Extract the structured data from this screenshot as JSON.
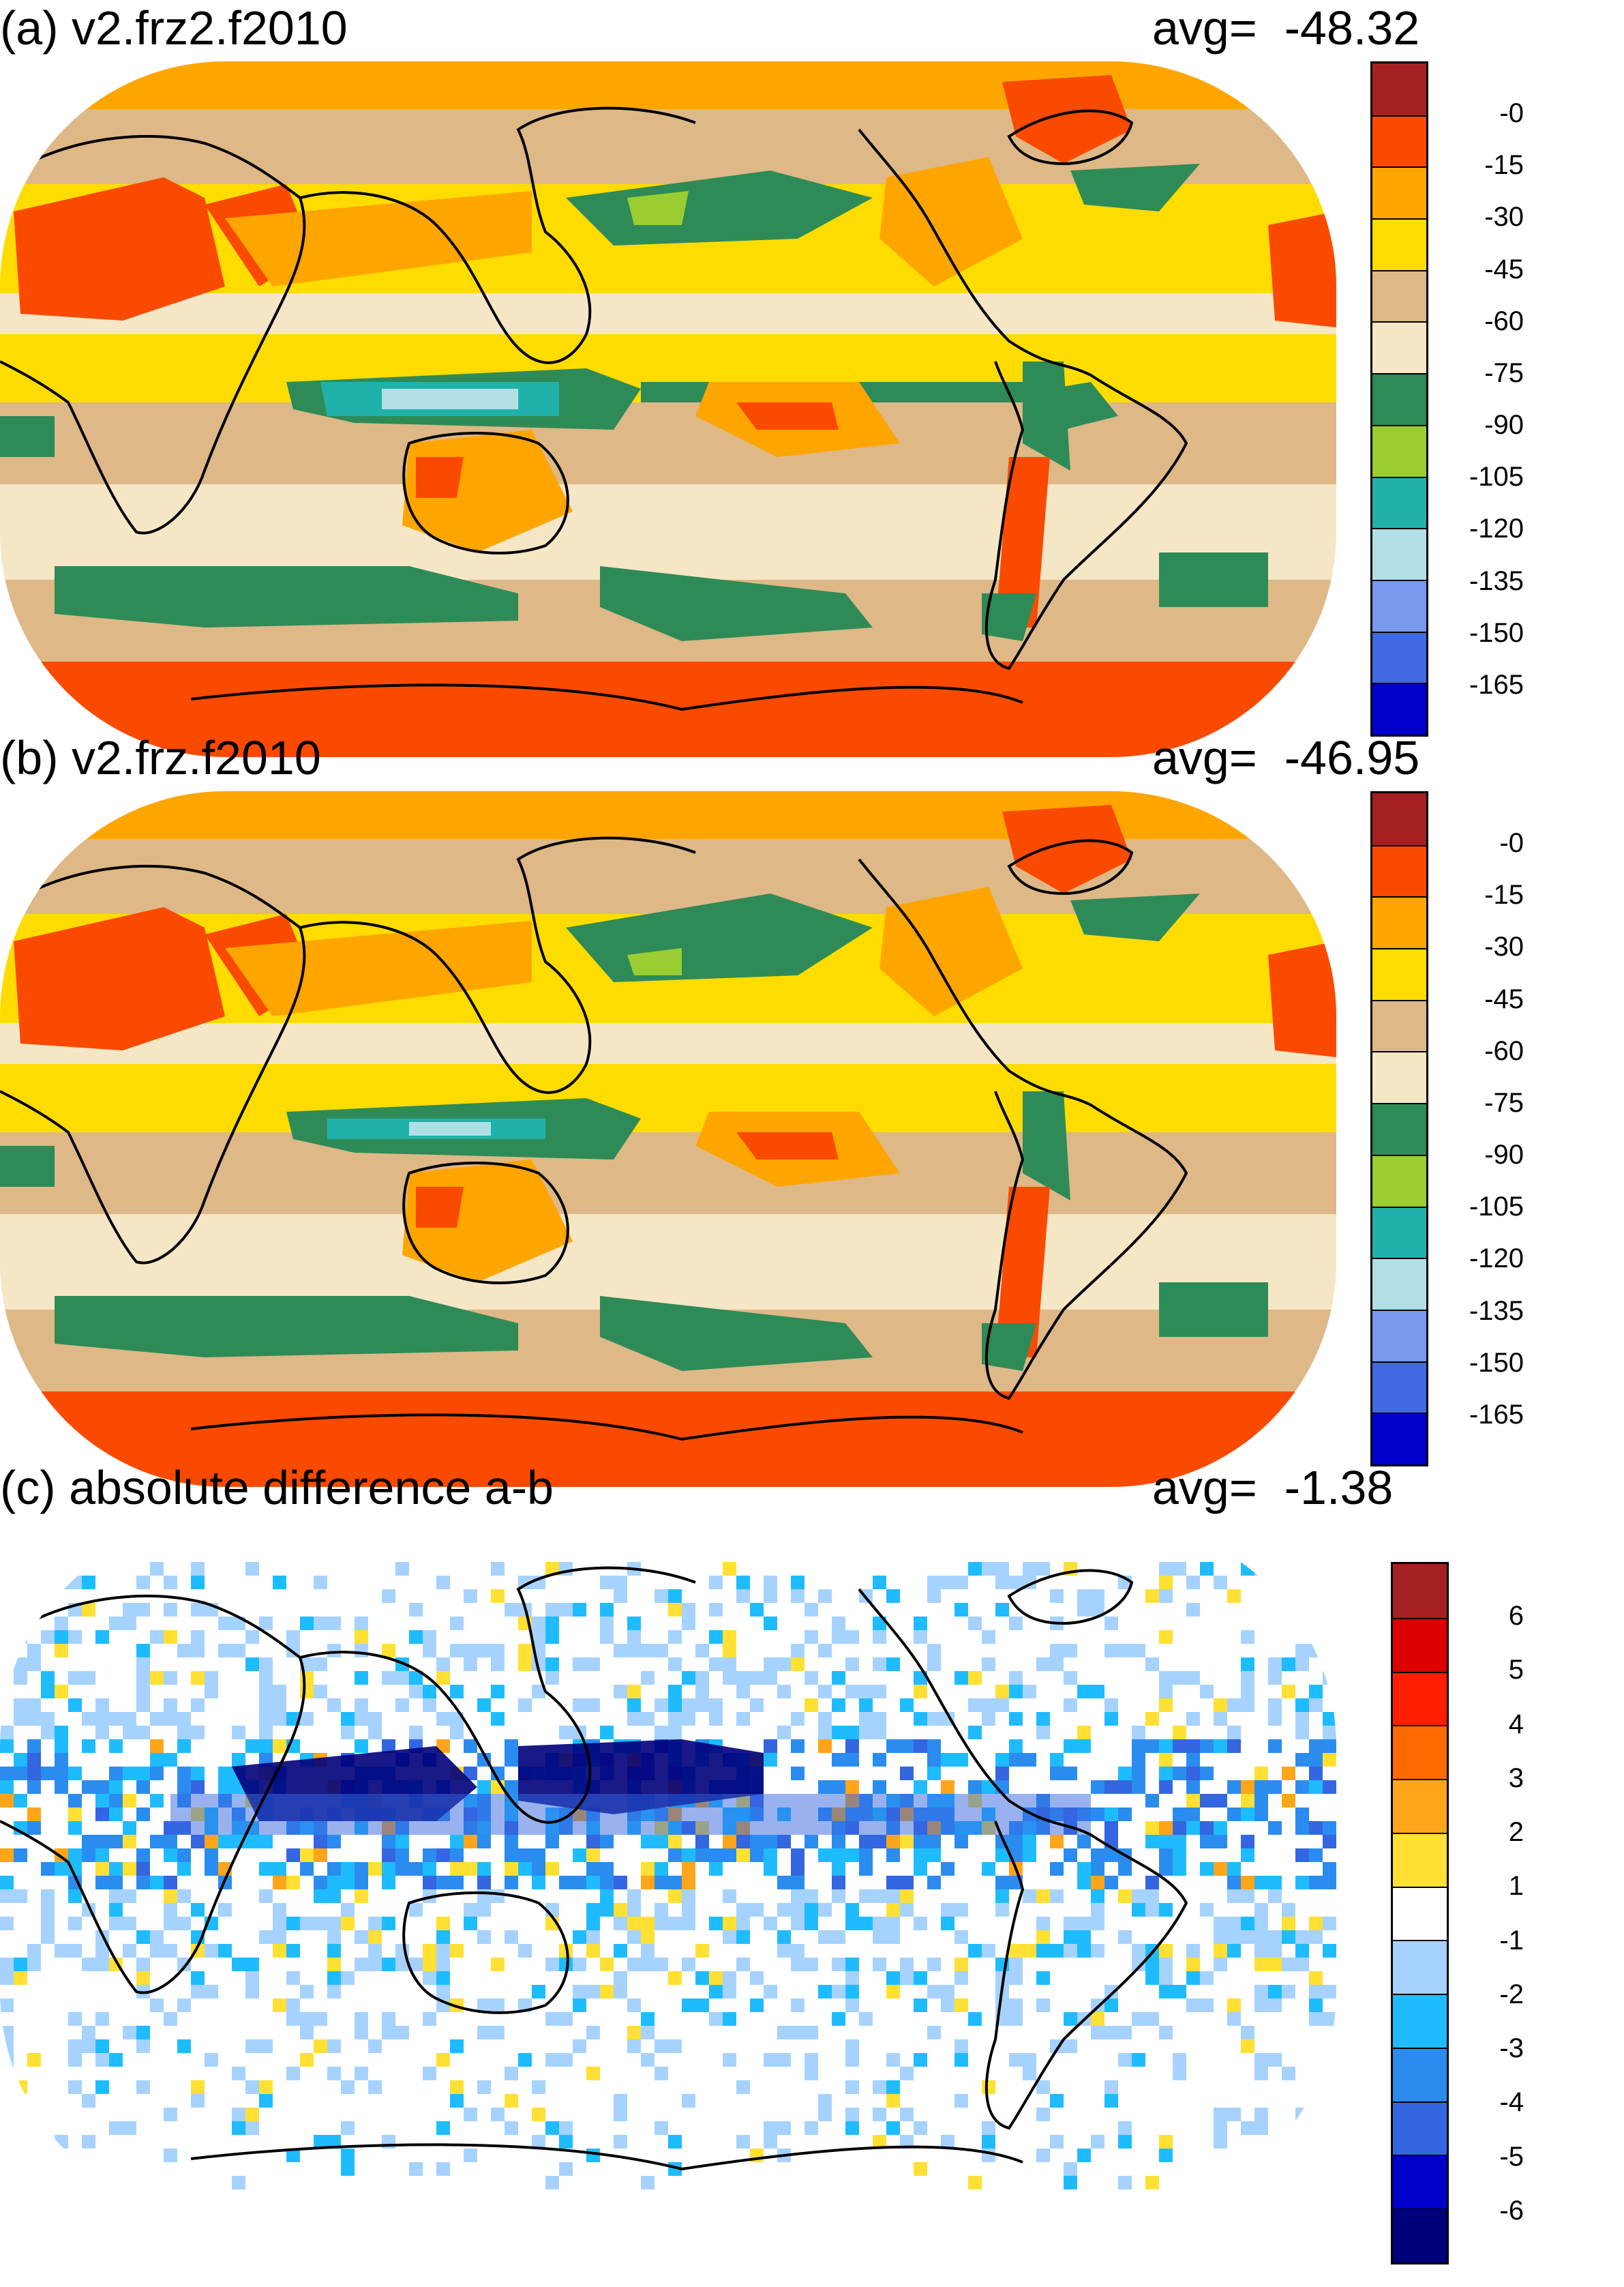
{
  "panels": [
    {
      "id": "a",
      "title": "(a) v2.frz2.f2010",
      "avg_label": "avg=",
      "avg_value": "-48.32",
      "colorbar": {
        "colors": [
          "#a52020",
          "#fa4a00",
          "#ffa500",
          "#ffdc00",
          "#deb887",
          "#f5e6c6",
          "#2e8b57",
          "#9acd32",
          "#20b2aa",
          "#b0e0e6",
          "#7799ee",
          "#4169e1",
          "#0000cd"
        ],
        "labels": [
          "-0",
          "-15",
          "-30",
          "-45",
          "-60",
          "-75",
          "-90",
          "-105",
          "-120",
          "-135",
          "-150",
          "-165"
        ]
      }
    },
    {
      "id": "b",
      "title": "(b) v2.frz.f2010",
      "avg_label": "avg=",
      "avg_value": "-46.95",
      "colorbar": {
        "colors": [
          "#a52020",
          "#fa4a00",
          "#ffa500",
          "#ffdc00",
          "#deb887",
          "#f5e6c6",
          "#2e8b57",
          "#9acd32",
          "#20b2aa",
          "#b0e0e6",
          "#7799ee",
          "#4169e1",
          "#0000cd"
        ],
        "labels": [
          "-0",
          "-15",
          "-30",
          "-45",
          "-60",
          "-75",
          "-90",
          "-105",
          "-120",
          "-135",
          "-150",
          "-165"
        ]
      }
    },
    {
      "id": "c",
      "title": "(c) absolute difference a-b",
      "avg_label": "avg=",
      "avg_value": "-1.38",
      "colorbar": {
        "colors": [
          "#a52020",
          "#dc0000",
          "#ff1e00",
          "#ff6a00",
          "#ffa51a",
          "#ffe033",
          "#ffffff",
          "#a6d2ff",
          "#1ebcff",
          "#2b8cf0",
          "#3366e0",
          "#0000cc",
          "#00007a"
        ],
        "labels": [
          "6",
          "5",
          "4",
          "3",
          "2",
          "1",
          "-1",
          "-2",
          "-3",
          "-4",
          "-5",
          "-6"
        ]
      }
    }
  ]
}
